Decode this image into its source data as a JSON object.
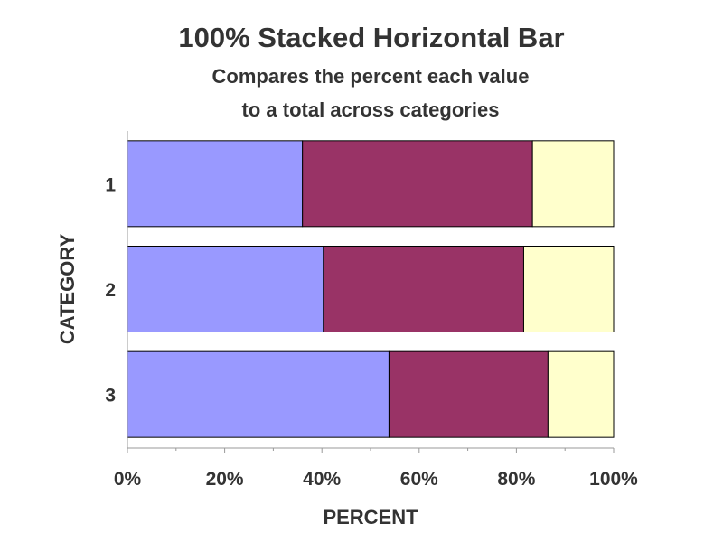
{
  "chart_data": {
    "type": "bar",
    "orientation": "horizontal",
    "stacking": "percent",
    "title": "100% Stacked Horizontal Bar",
    "subtitle": [
      "Compares the percent each value",
      "to a total across categories"
    ],
    "xlabel": "PERCENT",
    "ylabel": "CATEGORY",
    "xlim": [
      0,
      100
    ],
    "x_ticks": [
      "0%",
      "20%",
      "40%",
      "60%",
      "80%",
      "100%"
    ],
    "x_tick_values": [
      0,
      20,
      40,
      60,
      80,
      100
    ],
    "categories": [
      "1",
      "2",
      "3"
    ],
    "series": [
      {
        "values": [
          36,
          40.3,
          53.8
        ],
        "color": "#9999ff"
      },
      {
        "values": [
          47.3,
          41.2,
          32.7
        ],
        "color": "#993366"
      },
      {
        "values": [
          16.7,
          18.5,
          13.5
        ],
        "color": "#ffffcc"
      }
    ],
    "grid": false,
    "legend": "none"
  }
}
